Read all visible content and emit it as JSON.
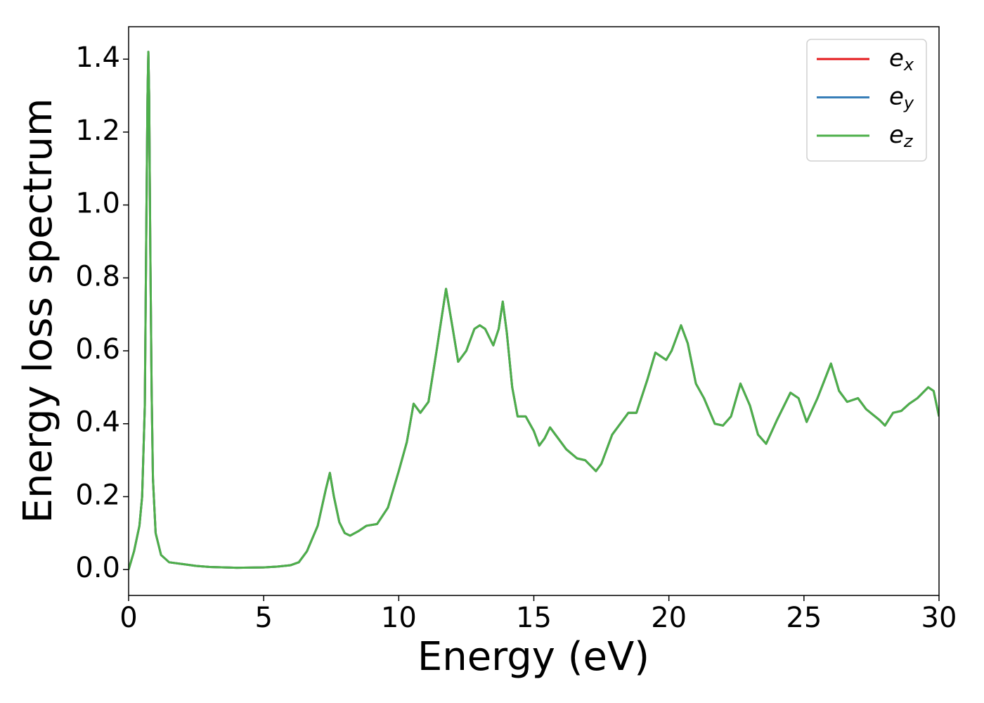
{
  "chart_data": {
    "type": "line",
    "xlabel": "Energy (eV)",
    "ylabel": "Energy loss spectrum",
    "x": [
      0,
      0.2,
      0.4,
      0.5,
      0.6,
      0.65,
      0.7,
      0.73,
      0.76,
      0.8,
      0.85,
      0.9,
      1.0,
      1.2,
      1.5,
      2.0,
      2.5,
      3,
      4,
      5,
      5.5,
      6,
      6.3,
      6.6,
      7.0,
      7.3,
      7.45,
      7.6,
      7.8,
      8.0,
      8.2,
      8.5,
      8.8,
      9.2,
      9.6,
      10.0,
      10.3,
      10.55,
      10.8,
      11.1,
      11.4,
      11.75,
      12.0,
      12.2,
      12.5,
      12.8,
      13.0,
      13.2,
      13.5,
      13.7,
      13.85,
      14.0,
      14.2,
      14.4,
      14.7,
      15.0,
      15.2,
      15.4,
      15.6,
      15.8,
      16.2,
      16.6,
      16.9,
      17.1,
      17.3,
      17.5,
      17.9,
      18.2,
      18.5,
      18.8,
      19.2,
      19.5,
      19.9,
      20.1,
      20.45,
      20.7,
      21.0,
      21.3,
      21.7,
      22.0,
      22.3,
      22.65,
      23.0,
      23.3,
      23.6,
      24.0,
      24.5,
      24.8,
      25.1,
      25.5,
      26.0,
      26.3,
      26.6,
      27.0,
      27.3,
      27.8,
      28.0,
      28.3,
      28.6,
      28.9,
      29.2,
      29.6,
      29.8,
      30.0
    ],
    "series": [
      {
        "name": "e_x",
        "color": "#e41a1c",
        "values": [
          0.0,
          0.05,
          0.12,
          0.2,
          0.45,
          0.9,
          1.3,
          1.42,
          1.3,
          0.9,
          0.5,
          0.25,
          0.1,
          0.04,
          0.02,
          0.015,
          0.01,
          0.007,
          0.005,
          0.006,
          0.008,
          0.012,
          0.02,
          0.05,
          0.12,
          0.22,
          0.265,
          0.2,
          0.13,
          0.1,
          0.093,
          0.105,
          0.12,
          0.125,
          0.17,
          0.27,
          0.35,
          0.455,
          0.43,
          0.46,
          0.6,
          0.77,
          0.66,
          0.57,
          0.6,
          0.66,
          0.67,
          0.66,
          0.615,
          0.66,
          0.735,
          0.65,
          0.5,
          0.42,
          0.42,
          0.38,
          0.34,
          0.36,
          0.39,
          0.37,
          0.33,
          0.305,
          0.3,
          0.285,
          0.27,
          0.29,
          0.37,
          0.4,
          0.43,
          0.43,
          0.52,
          0.595,
          0.575,
          0.6,
          0.67,
          0.62,
          0.51,
          0.47,
          0.4,
          0.395,
          0.42,
          0.51,
          0.45,
          0.37,
          0.345,
          0.41,
          0.485,
          0.47,
          0.405,
          0.47,
          0.565,
          0.49,
          0.46,
          0.47,
          0.44,
          0.41,
          0.395,
          0.43,
          0.435,
          0.455,
          0.47,
          0.5,
          0.49,
          0.42
        ]
      },
      {
        "name": "e_y",
        "color": "#377eb8",
        "values": [
          0.0,
          0.05,
          0.12,
          0.2,
          0.45,
          0.9,
          1.3,
          1.42,
          1.3,
          0.9,
          0.5,
          0.25,
          0.1,
          0.04,
          0.02,
          0.015,
          0.01,
          0.007,
          0.005,
          0.006,
          0.008,
          0.012,
          0.02,
          0.05,
          0.12,
          0.22,
          0.265,
          0.2,
          0.13,
          0.1,
          0.093,
          0.105,
          0.12,
          0.125,
          0.17,
          0.27,
          0.35,
          0.455,
          0.43,
          0.46,
          0.6,
          0.77,
          0.66,
          0.57,
          0.6,
          0.66,
          0.67,
          0.66,
          0.615,
          0.66,
          0.735,
          0.65,
          0.5,
          0.42,
          0.42,
          0.38,
          0.34,
          0.36,
          0.39,
          0.37,
          0.33,
          0.305,
          0.3,
          0.285,
          0.27,
          0.29,
          0.37,
          0.4,
          0.43,
          0.43,
          0.52,
          0.595,
          0.575,
          0.6,
          0.67,
          0.62,
          0.51,
          0.47,
          0.4,
          0.395,
          0.42,
          0.51,
          0.45,
          0.37,
          0.345,
          0.41,
          0.485,
          0.47,
          0.405,
          0.47,
          0.565,
          0.49,
          0.46,
          0.47,
          0.44,
          0.41,
          0.395,
          0.43,
          0.435,
          0.455,
          0.47,
          0.5,
          0.49,
          0.42
        ]
      },
      {
        "name": "e_z",
        "color": "#4daf4a",
        "values": [
          0.0,
          0.05,
          0.12,
          0.2,
          0.45,
          0.9,
          1.3,
          1.42,
          1.3,
          0.9,
          0.5,
          0.25,
          0.1,
          0.04,
          0.02,
          0.015,
          0.01,
          0.007,
          0.005,
          0.006,
          0.008,
          0.012,
          0.02,
          0.05,
          0.12,
          0.22,
          0.265,
          0.2,
          0.13,
          0.1,
          0.093,
          0.105,
          0.12,
          0.125,
          0.17,
          0.27,
          0.35,
          0.455,
          0.43,
          0.46,
          0.6,
          0.77,
          0.66,
          0.57,
          0.6,
          0.66,
          0.67,
          0.66,
          0.615,
          0.66,
          0.735,
          0.65,
          0.5,
          0.42,
          0.42,
          0.38,
          0.34,
          0.36,
          0.39,
          0.37,
          0.33,
          0.305,
          0.3,
          0.285,
          0.27,
          0.29,
          0.37,
          0.4,
          0.43,
          0.43,
          0.52,
          0.595,
          0.575,
          0.6,
          0.67,
          0.62,
          0.51,
          0.47,
          0.4,
          0.395,
          0.42,
          0.51,
          0.45,
          0.37,
          0.345,
          0.41,
          0.485,
          0.47,
          0.405,
          0.47,
          0.565,
          0.49,
          0.46,
          0.47,
          0.44,
          0.41,
          0.395,
          0.43,
          0.435,
          0.455,
          0.47,
          0.5,
          0.49,
          0.42
        ]
      }
    ],
    "xlim": [
      0,
      30
    ],
    "xticks": [
      0,
      5,
      10,
      15,
      20,
      25,
      30
    ],
    "ylim": [
      -0.071,
      1.489
    ],
    "yticks": [
      {
        "value": 0,
        "label": "0.0"
      },
      0.2,
      0.4,
      0.6,
      0.8,
      {
        "value": 1,
        "label": "1.0"
      },
      1.2,
      1.4
    ],
    "grid": false,
    "legend": "upper right"
  }
}
